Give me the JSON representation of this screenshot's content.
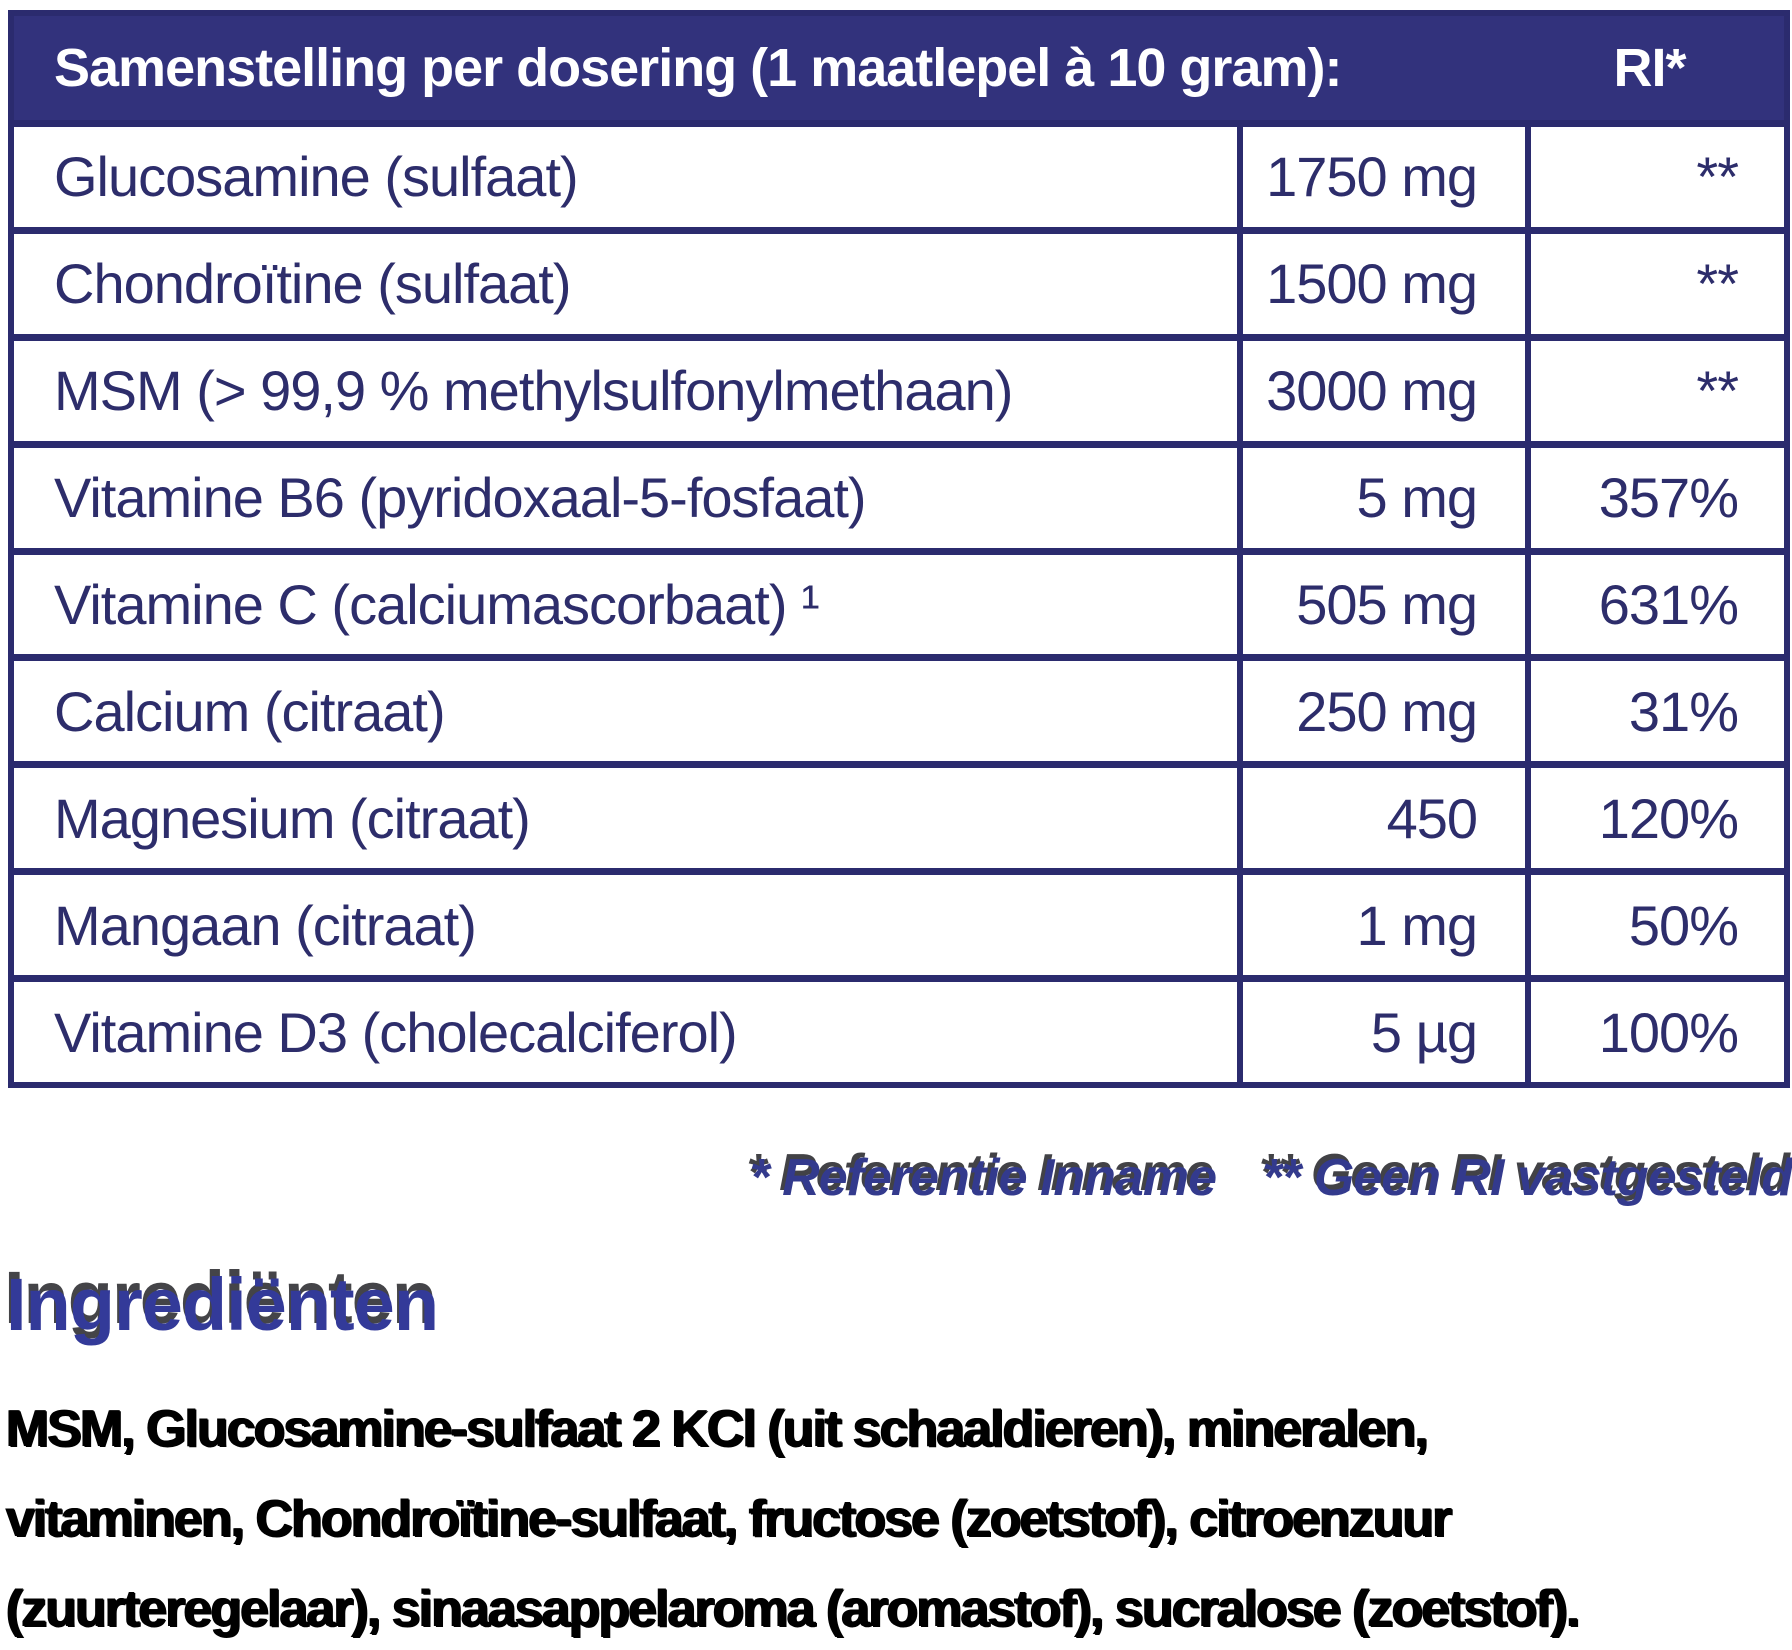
{
  "table": {
    "header": {
      "title": "Samenstelling per dosering (1 maatlepel à 10 gram):",
      "ri_label": "RI*"
    },
    "rows": [
      {
        "name": "Glucosamine (sulfaat)",
        "amount": "1750 mg",
        "ri": "**"
      },
      {
        "name": "Chondroïtine (sulfaat)",
        "amount": "1500 mg",
        "ri": "**"
      },
      {
        "name": "MSM (> 99,9 % methylsulfonylmethaan)",
        "amount": "3000 mg",
        "ri": "**"
      },
      {
        "name": "Vitamine B6 (pyridoxaal-5-fosfaat)",
        "amount": "5 mg",
        "ri": "357%"
      },
      {
        "name": "Vitamine C (calciumascorbaat) ¹",
        "amount": "505 mg",
        "ri": "631%"
      },
      {
        "name": "Calcium (citraat)",
        "amount": "250 mg",
        "ri": "31%"
      },
      {
        "name": "Magnesium (citraat)",
        "amount": "450",
        "ri": "120%"
      },
      {
        "name": "Mangaan (citraat)",
        "amount": "1 mg",
        "ri": "50%"
      },
      {
        "name": "Vitamine D3 (cholecalciferol)",
        "amount": "5 µg",
        "ri": "100%"
      }
    ]
  },
  "footnotes": {
    "reference": "* Referentie Inname",
    "no_ri": "** Geen RI vastgesteld"
  },
  "ingredients": {
    "heading": "Ingrediënten",
    "lines": [
      "MSM, Glucosamine-sulfaat 2 KCl (uit schaaldieren), mineralen,",
      "vitaminen, Chondroïtine-sulfaat, fructose (zoetstof), citroenzuur",
      "(zuurteregelaar), sinaasappelaroma (aromastof), sucralose (zoetstof)."
    ]
  },
  "colors": {
    "header_bg": "#32327c",
    "border_navy": "#2b2b6e",
    "cell_text": "#2d2d6b",
    "footnote_blue": "#333a8d",
    "heading_blue": "#333a99",
    "body_text": "#000000"
  }
}
